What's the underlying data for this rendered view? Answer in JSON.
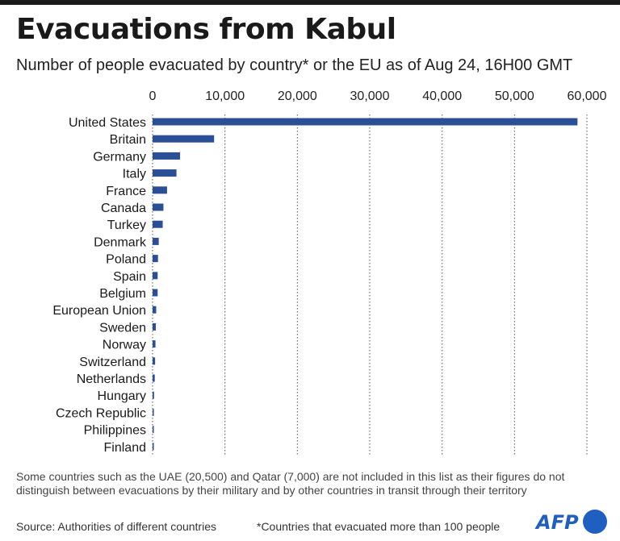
{
  "header": {
    "title": "Evacuations from Kabul",
    "subtitle": "Number of people evacuated by country* or the EU as of Aug 24, 16H00 GMT"
  },
  "chart_data": {
    "type": "bar",
    "orientation": "horizontal",
    "categories": [
      "United States",
      "Britain",
      "Germany",
      "Italy",
      "France",
      "Canada",
      "Turkey",
      "Denmark",
      "Poland",
      "Spain",
      "Belgium",
      "European Union",
      "Sweden",
      "Norway",
      "Switzerland",
      "Netherlands",
      "Hungary",
      "Czech Republic",
      "Philippines",
      "Finland"
    ],
    "values": [
      58700,
      8500,
      3800,
      3300,
      2000,
      1500,
      1400,
      850,
      750,
      700,
      700,
      500,
      450,
      400,
      350,
      300,
      200,
      170,
      150,
      120
    ],
    "xlim": [
      0,
      60000
    ],
    "x_ticks": [
      0,
      10000,
      20000,
      30000,
      40000,
      50000,
      60000
    ],
    "x_tick_labels": [
      "0",
      "10,000",
      "20,000",
      "30,000",
      "40,000",
      "50,000",
      "60,000"
    ],
    "axis_position": "top",
    "grid": true,
    "bar_color": "#2a4f97"
  },
  "footer": {
    "note": "Some countries such as the UAE (20,500) and Qatar (7,000) are not included in this list as their figures do not distinguish between evacuations by their military and by other countries in transit through their territory",
    "source": "Source: Authorities of different countries",
    "footnote": "*Countries that evacuated more than 100 people",
    "logo_text": "AFP"
  },
  "colors": {
    "brand": "#1f5fbf",
    "bar": "#2a4f97"
  }
}
